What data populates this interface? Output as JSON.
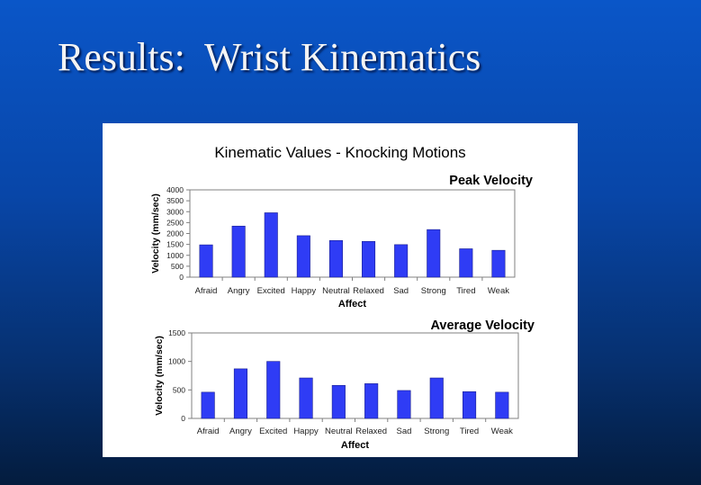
{
  "slide": {
    "title": "Results:  Wrist Kinematics"
  },
  "figure": {
    "title": "Kinematic Values - Knocking Motions"
  },
  "colors": {
    "bar": "#2f3cf5",
    "bar_edge": "#1a1f8f",
    "axis": "#808080",
    "text": "#000000"
  },
  "chart_data": [
    {
      "type": "bar",
      "title": "Peak Velocity",
      "xlabel": "Affect",
      "ylabel": "Velocity (mm/sec)",
      "categories": [
        "Afraid",
        "Angry",
        "Excited",
        "Happy",
        "Neutral",
        "Relaxed",
        "Sad",
        "Strong",
        "Tired",
        "Weak"
      ],
      "values": [
        1480,
        2340,
        2950,
        1900,
        1680,
        1640,
        1490,
        2180,
        1300,
        1230
      ],
      "ylim": [
        0,
        4000
      ],
      "yticks": [
        "0",
        "500",
        "1000",
        "1500",
        "2000",
        "2500",
        "3000",
        "3500",
        "4000"
      ],
      "grid": false,
      "legend": "none"
    },
    {
      "type": "bar",
      "title": "Average Velocity",
      "xlabel": "Affect",
      "ylabel": "Velocity (mm/sec)",
      "categories": [
        "Afraid",
        "Angry",
        "Excited",
        "Happy",
        "Neutral",
        "Relaxed",
        "Sad",
        "Strong",
        "Tired",
        "Weak"
      ],
      "values": [
        460,
        870,
        1000,
        710,
        580,
        610,
        490,
        710,
        470,
        460
      ],
      "ylim": [
        0,
        1500
      ],
      "yticks": [
        "0",
        "500",
        "1000",
        "1500"
      ],
      "grid": false,
      "legend": "none"
    }
  ]
}
